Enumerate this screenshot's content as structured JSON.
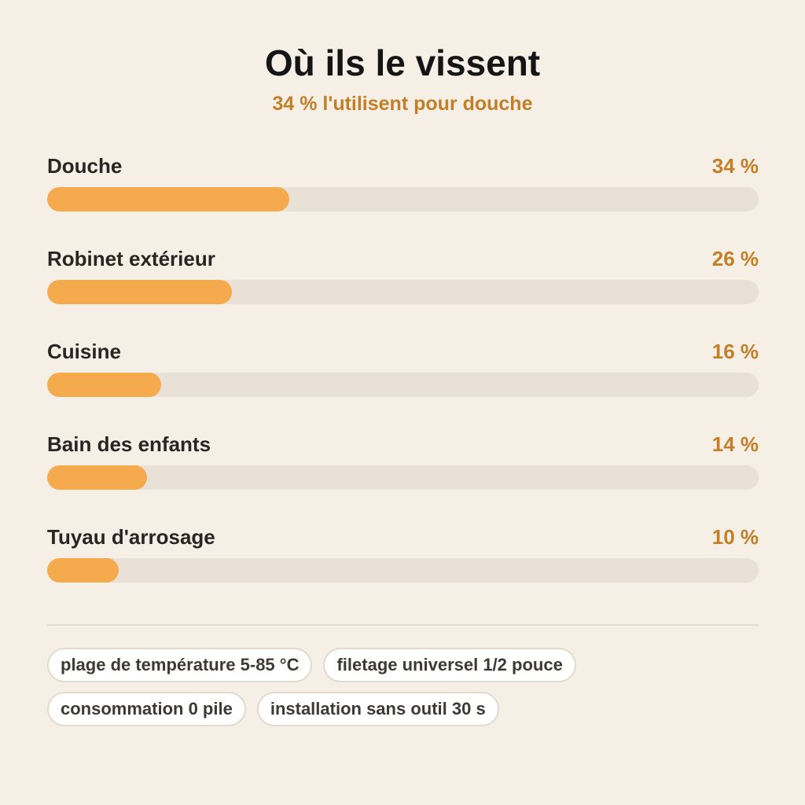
{
  "title": "Où ils le vissent",
  "subtitle": "34 % l'utilisent pour douche",
  "colors": {
    "background": "#f5efe6",
    "bar_fill": "#f5aa4e",
    "bar_track": "#e9e1d6",
    "accent_text": "#c27f28"
  },
  "chart_data": {
    "type": "bar",
    "orientation": "horizontal",
    "categories": [
      "Douche",
      "Robinet extérieur",
      "Cuisine",
      "Bain des enfants",
      "Tuyau d'arrosage"
    ],
    "values": [
      34,
      26,
      16,
      14,
      10
    ],
    "value_labels": [
      "34 %",
      "26 %",
      "16 %",
      "14 %",
      "10 %"
    ],
    "unit": "%",
    "xlim": [
      0,
      100
    ]
  },
  "tags": [
    "plage de température 5-85 °C",
    "filetage universel 1/2 pouce",
    "consommation 0 pile",
    "installation sans outil 30 s"
  ]
}
